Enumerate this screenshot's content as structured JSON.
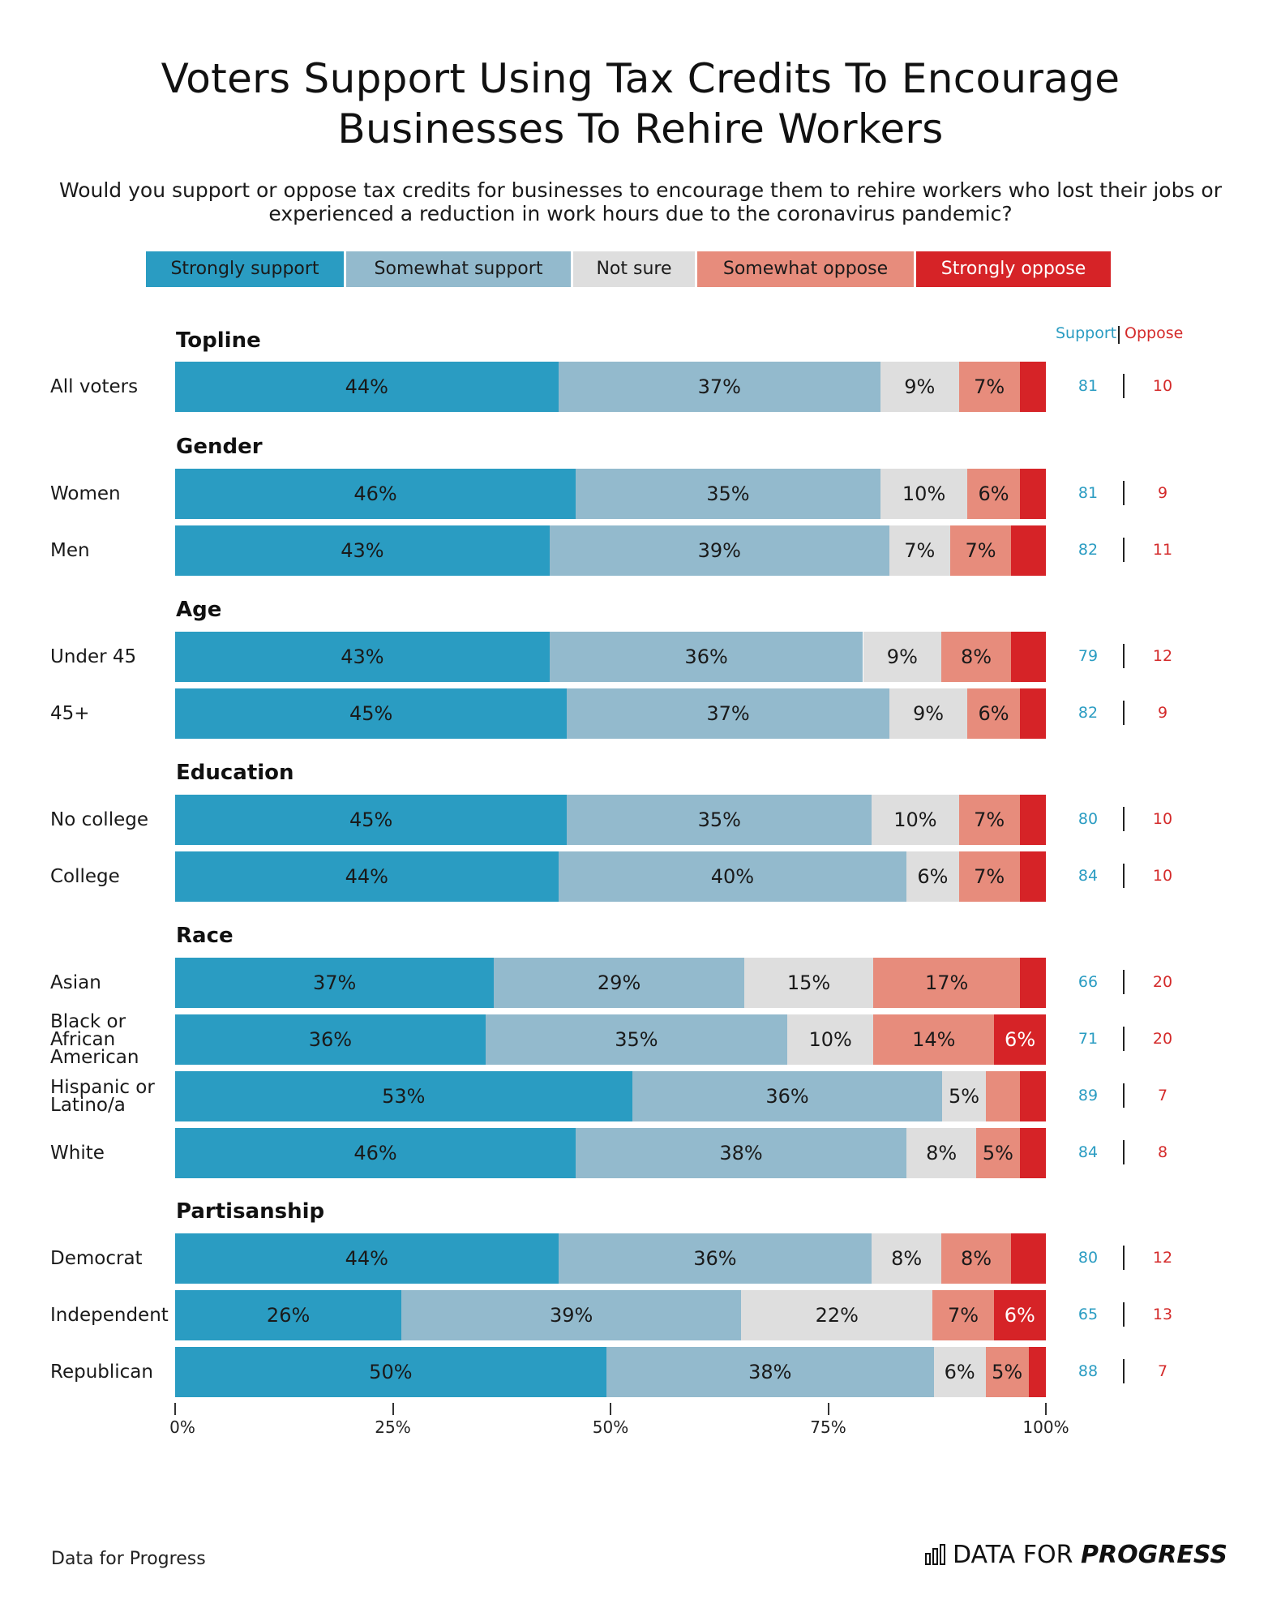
{
  "title": "Voters Support Using Tax Credits To Encourage\nBusinesses To Rehire Workers",
  "subtitle": "Would you support or oppose tax credits for businesses to encourage them to rehire workers who lost their jobs or\nexperienced a reduction in work hours due to the coronavirus pandemic?",
  "legend": [
    {
      "label": "Strongly support",
      "color": "#2a9cc2",
      "text_color": "#1a1a1a"
    },
    {
      "label": "Somewhat support",
      "color": "#93bacd",
      "text_color": "#1a1a1a"
    },
    {
      "label": "Not sure",
      "color": "#dedede",
      "text_color": "#1a1a1a"
    },
    {
      "label": "Somewhat oppose",
      "color": "#e78c7c",
      "text_color": "#1a1a1a"
    },
    {
      "label": "Strongly oppose",
      "color": "#d62327",
      "text_color": "#ffffff"
    }
  ],
  "columns": {
    "support": "Support",
    "oppose": "Oppose"
  },
  "footer": {
    "source": "Data for Progress",
    "brand_a": "DATA FOR",
    "brand_b": "PROGRESS"
  },
  "chart_data": {
    "type": "bar",
    "orientation": "horizontal-stacked-100",
    "series_names": [
      "Strongly support",
      "Somewhat support",
      "Not sure",
      "Somewhat oppose",
      "Strongly oppose"
    ],
    "xlim": [
      0,
      100
    ],
    "ticks": [
      "0%",
      "25%",
      "50%",
      "75%",
      "100%"
    ],
    "groups": [
      {
        "name": "Topline",
        "rows": [
          {
            "label": "All voters",
            "values": [
              44,
              37,
              9,
              7,
              3
            ],
            "text": [
              "44%",
              "37%",
              "9%",
              "7%",
              ""
            ],
            "support": "81",
            "oppose": "10"
          }
        ]
      },
      {
        "name": "Gender",
        "rows": [
          {
            "label": "Women",
            "values": [
              46,
              35,
              10,
              6,
              3
            ],
            "text": [
              "46%",
              "35%",
              "10%",
              "6%",
              ""
            ],
            "support": "81",
            "oppose": "9"
          },
          {
            "label": "Men",
            "values": [
              43,
              39,
              7,
              7,
              4
            ],
            "text": [
              "43%",
              "39%",
              "7%",
              "7%",
              ""
            ],
            "support": "82",
            "oppose": "11"
          }
        ]
      },
      {
        "name": "Age",
        "rows": [
          {
            "label": "Under 45",
            "values": [
              43,
              36,
              9,
              8,
              4
            ],
            "text": [
              "43%",
              "36%",
              "9%",
              "8%",
              ""
            ],
            "support": "79",
            "oppose": "12"
          },
          {
            "label": "45+",
            "values": [
              45,
              37,
              9,
              6,
              3
            ],
            "text": [
              "45%",
              "37%",
              "9%",
              "6%",
              ""
            ],
            "support": "82",
            "oppose": "9"
          }
        ]
      },
      {
        "name": "Education",
        "rows": [
          {
            "label": "No college",
            "values": [
              45,
              35,
              10,
              7,
              3
            ],
            "text": [
              "45%",
              "35%",
              "10%",
              "7%",
              ""
            ],
            "support": "80",
            "oppose": "10"
          },
          {
            "label": "College",
            "values": [
              44,
              40,
              6,
              7,
              3
            ],
            "text": [
              "44%",
              "40%",
              "6%",
              "7%",
              ""
            ],
            "support": "84",
            "oppose": "10"
          }
        ]
      },
      {
        "name": "Race",
        "rows": [
          {
            "label": "Asian",
            "values": [
              37,
              29,
              15,
              17,
              3
            ],
            "text": [
              "37%",
              "29%",
              "15%",
              "17%",
              ""
            ],
            "support": "66",
            "oppose": "20"
          },
          {
            "label": "Black or\nAfrican\nAmerican",
            "values": [
              36,
              35,
              10,
              14,
              6
            ],
            "text": [
              "36%",
              "35%",
              "10%",
              "14%",
              "6%"
            ],
            "support": "71",
            "oppose": "20"
          },
          {
            "label": "Hispanic or\nLatino/a",
            "values": [
              53,
              36,
              5,
              4,
              3
            ],
            "text": [
              "53%",
              "36%",
              "5%",
              "",
              ""
            ],
            "support": "89",
            "oppose": "7"
          },
          {
            "label": "White",
            "values": [
              46,
              38,
              8,
              5,
              3
            ],
            "text": [
              "46%",
              "38%",
              "8%",
              "5%",
              ""
            ],
            "support": "84",
            "oppose": "8"
          }
        ]
      },
      {
        "name": "Partisanship",
        "rows": [
          {
            "label": "Democrat",
            "values": [
              44,
              36,
              8,
              8,
              4
            ],
            "text": [
              "44%",
              "36%",
              "8%",
              "8%",
              ""
            ],
            "support": "80",
            "oppose": "12"
          },
          {
            "label": "Independent",
            "values": [
              26,
              39,
              22,
              7,
              6
            ],
            "text": [
              "26%",
              "39%",
              "22%",
              "7%",
              "6%"
            ],
            "support": "65",
            "oppose": "13"
          },
          {
            "label": "Republican",
            "values": [
              50,
              38,
              6,
              5,
              2
            ],
            "text": [
              "50%",
              "38%",
              "6%",
              "5%",
              ""
            ],
            "support": "88",
            "oppose": "7"
          }
        ]
      }
    ]
  }
}
